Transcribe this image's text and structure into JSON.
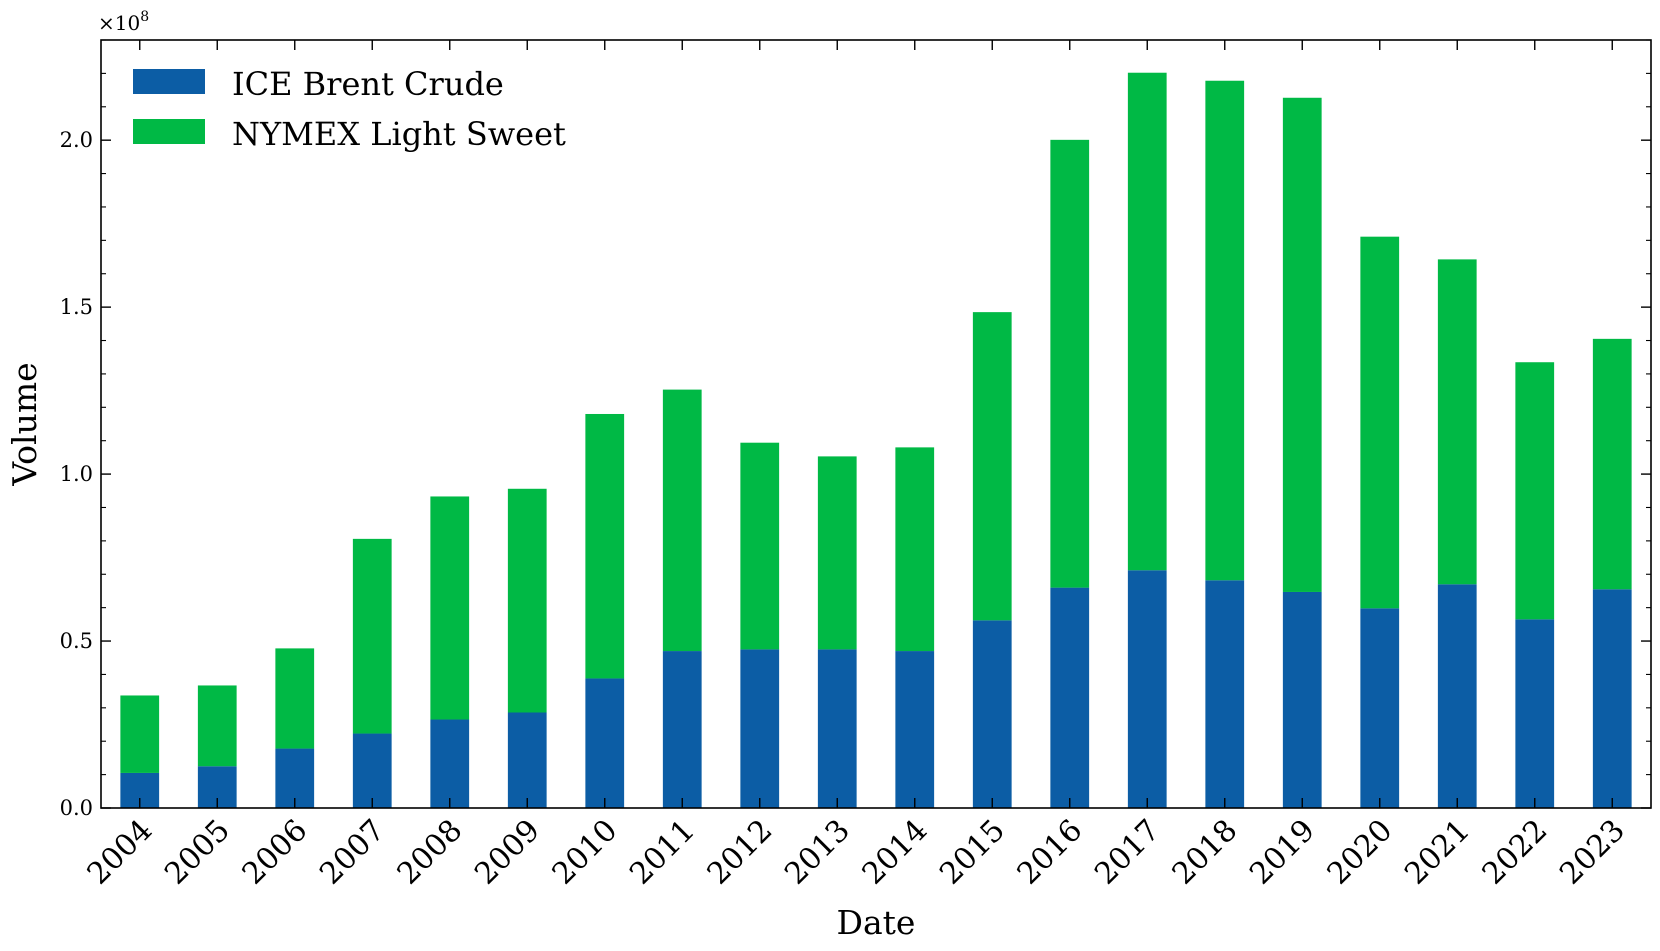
{
  "chart_data": {
    "type": "bar",
    "stacked": true,
    "xlabel": "Date",
    "ylabel": "Volume",
    "y_offset_label": "×10",
    "y_offset_exponent": "8",
    "ylim": [
      0,
      230000000
    ],
    "yticks": [
      0,
      50000000,
      100000000,
      150000000,
      200000000
    ],
    "ytick_labels": [
      "0.0",
      "0.5",
      "1.0",
      "1.5",
      "2.0"
    ],
    "categories": [
      "2004",
      "2005",
      "2006",
      "2007",
      "2008",
      "2009",
      "2010",
      "2011",
      "2012",
      "2013",
      "2014",
      "2015",
      "2016",
      "2017",
      "2018",
      "2019",
      "2020",
      "2021",
      "2022",
      "2023"
    ],
    "series": [
      {
        "name": "ICE Brent Crude",
        "color": "#0c5da5",
        "values": [
          10500000,
          12500000,
          17800000,
          22300000,
          26500000,
          28600000,
          38800000,
          47000000,
          47500000,
          47500000,
          47000000,
          56200000,
          66000000,
          71200000,
          68200000,
          64700000,
          59800000,
          67000000,
          56500000,
          65500000
        ]
      },
      {
        "name": "NYMEX Light Sweet",
        "color": "#00b945",
        "values": [
          23200000,
          24200000,
          30000000,
          58300000,
          66800000,
          67000000,
          79200000,
          78300000,
          61900000,
          57800000,
          61000000,
          92300000,
          134100000,
          149000000,
          149600000,
          148000000,
          111300000,
          97300000,
          77000000,
          75000000
        ]
      }
    ],
    "legend_position": "top-left",
    "grid": false
  }
}
